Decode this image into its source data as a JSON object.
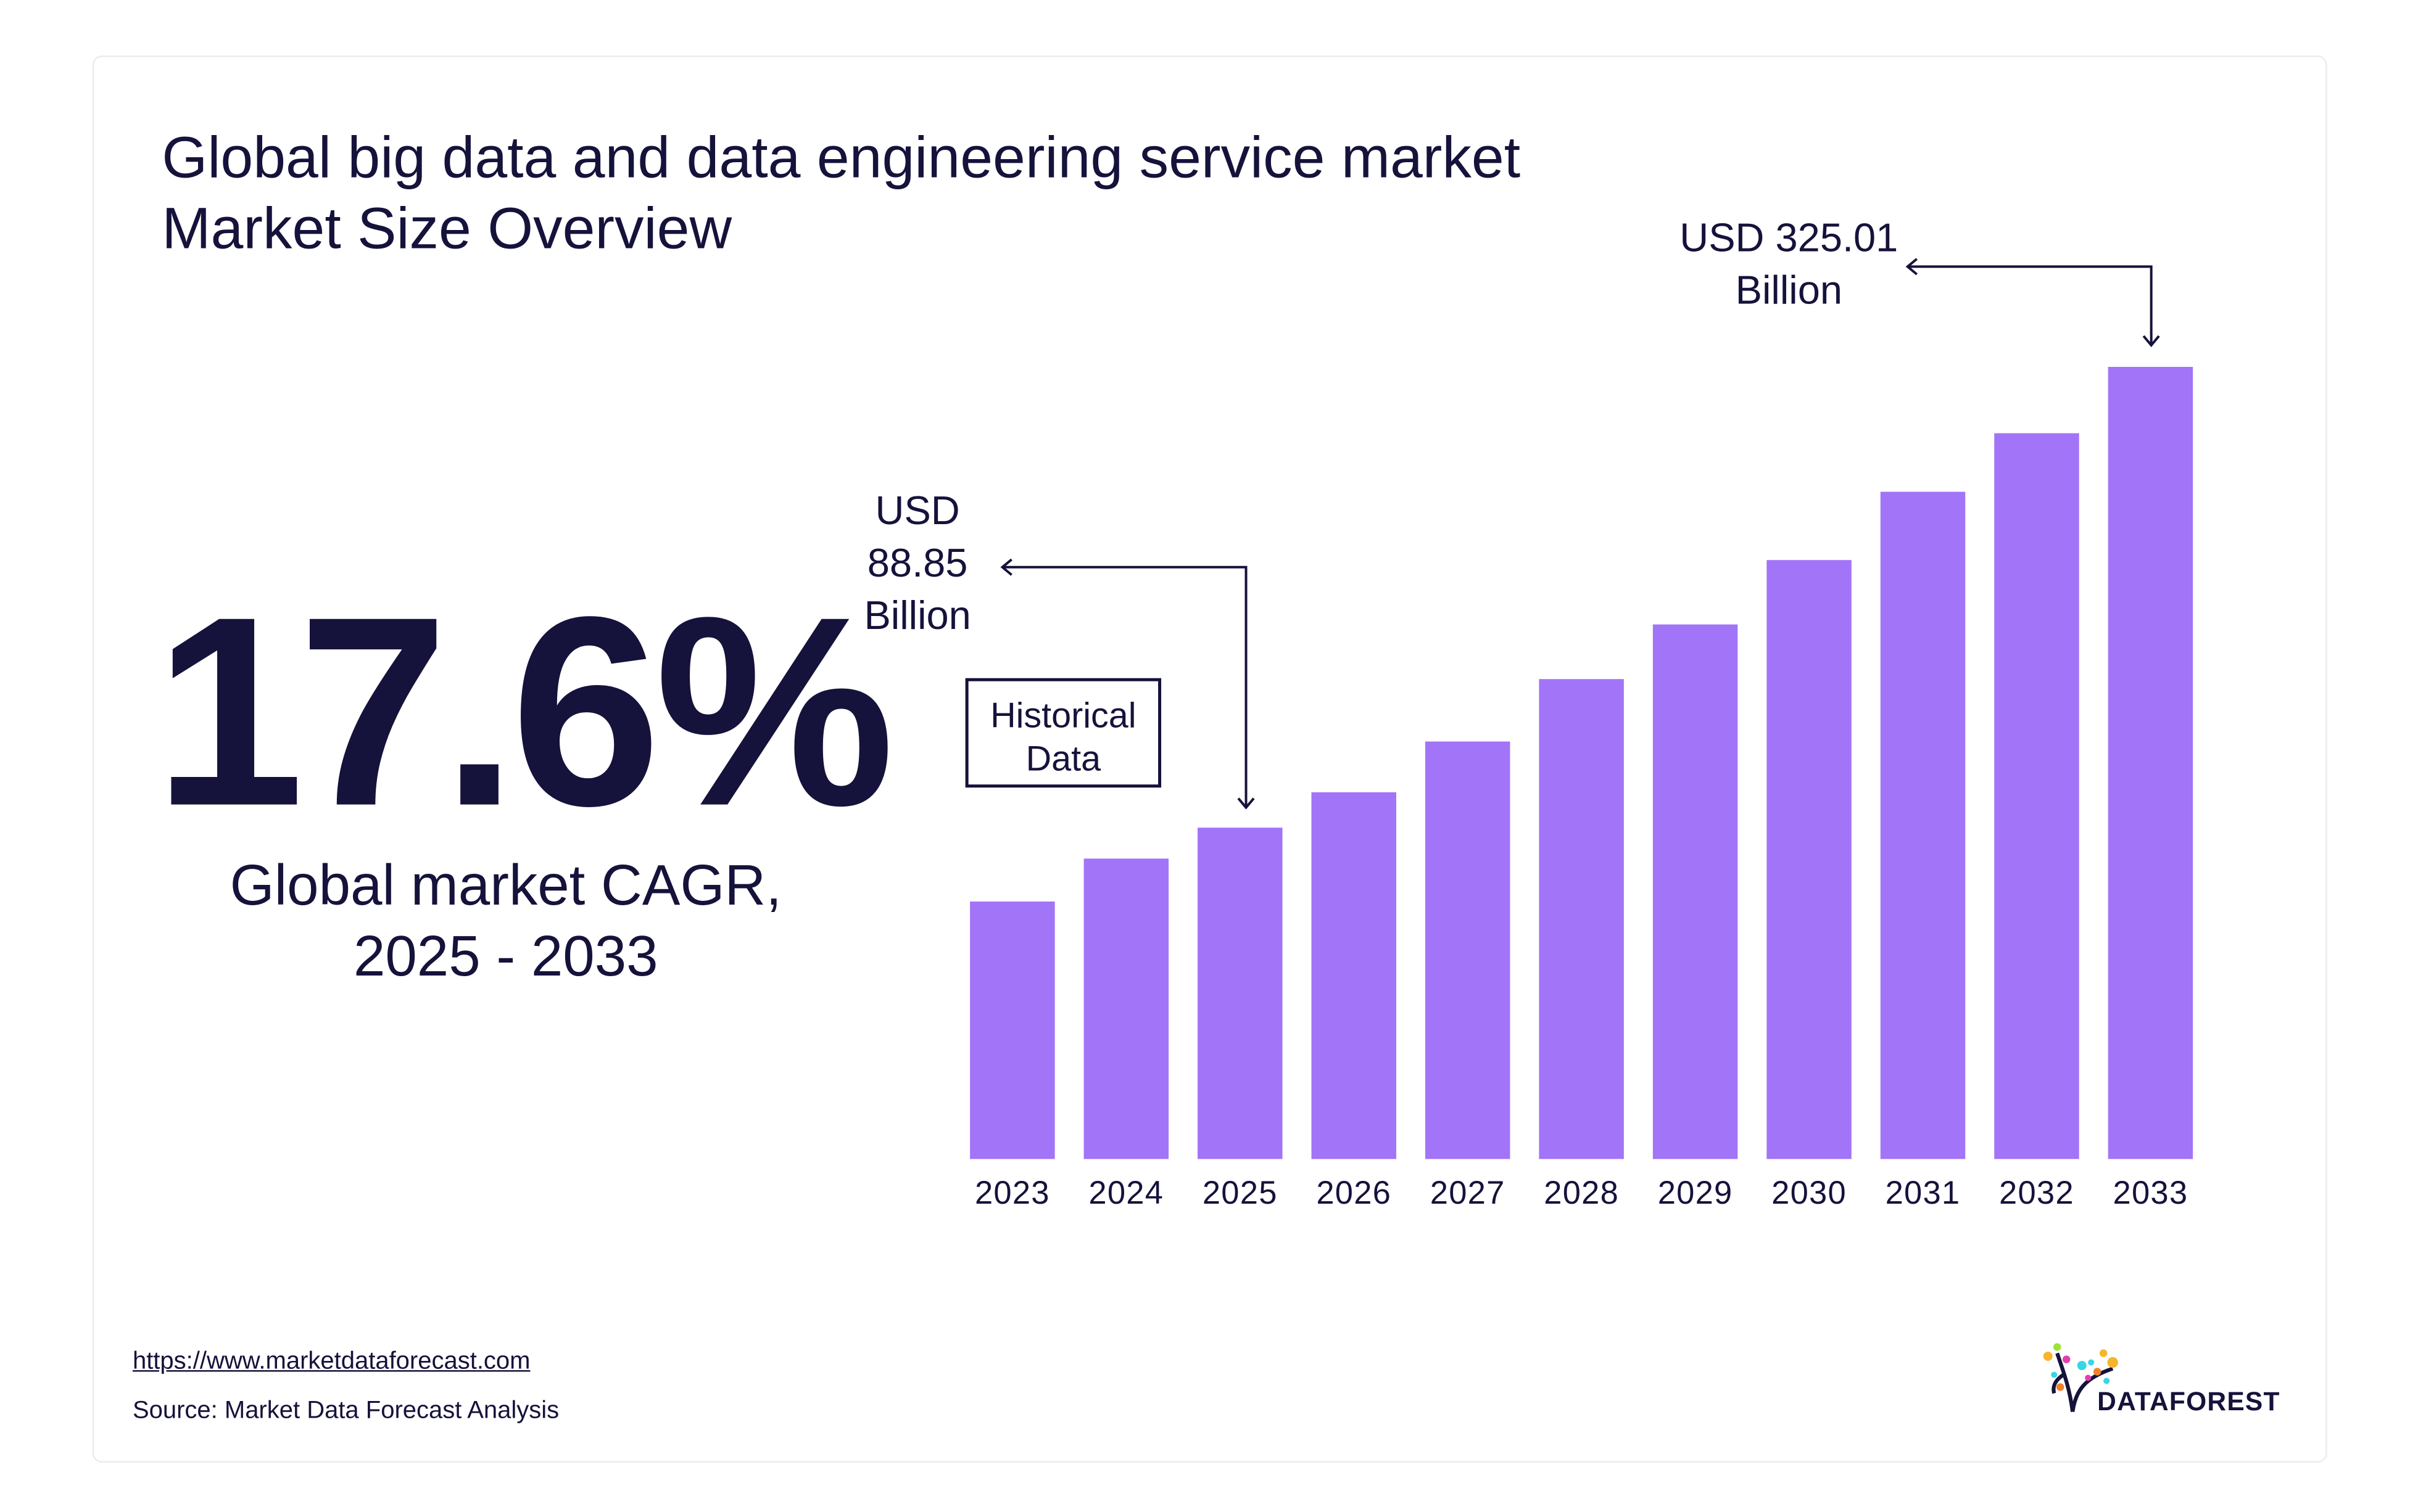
{
  "title_line1": "Global big data and data engineering service market",
  "title_line2": "Market Size Overview",
  "cagr": {
    "value": "17.6%",
    "label_line1": "Global market CAGR,",
    "label_line2": "2025 - 2033"
  },
  "historical_label_line1": "Historical",
  "historical_label_line2": "Data",
  "footer": {
    "link": "https://www.marketdataforecast.com",
    "source": "Source: Market Data Forecast Analysis"
  },
  "logo": {
    "text": "DATAFOREST"
  },
  "chart_data": {
    "type": "bar",
    "title": "Global big data and data engineering service market Market Size Overview",
    "xlabel": "",
    "ylabel": "",
    "unit": "USD Billion",
    "categories": [
      "2023",
      "2024",
      "2025",
      "2026",
      "2027",
      "2028",
      "2029",
      "2030",
      "2031",
      "2032",
      "2033"
    ],
    "values": [
      51,
      73,
      88.85,
      107,
      133,
      165,
      193,
      226,
      261,
      291,
      325.01
    ],
    "color": "#a274f7",
    "grid": false,
    "annotations": [
      {
        "category": "2025",
        "line1": "USD",
        "line2": "88.85",
        "line3": "Billion"
      },
      {
        "category": "2033",
        "line1": "USD 325.01",
        "line2": "Billion"
      }
    ]
  }
}
